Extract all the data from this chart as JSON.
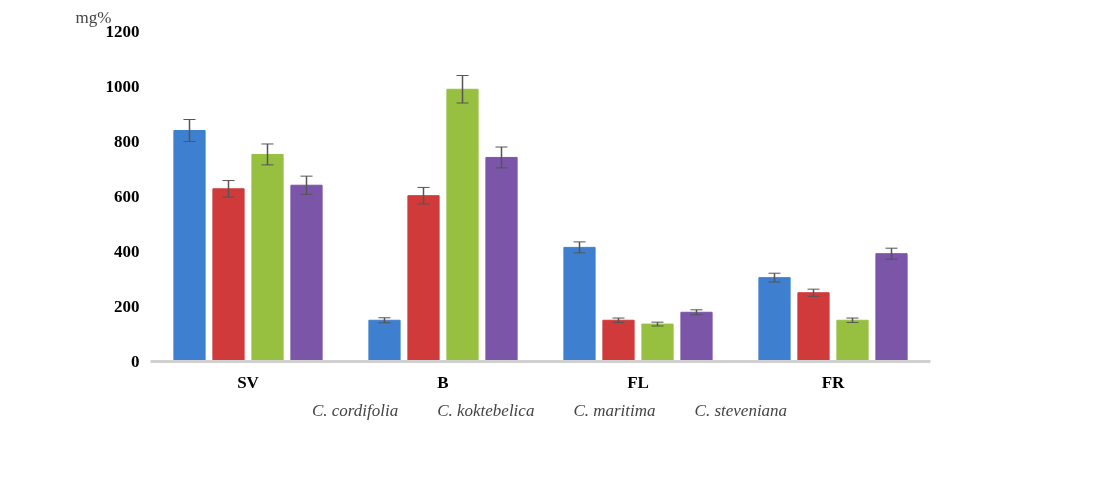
{
  "chart_data": {
    "type": "bar",
    "ylabel": "mg%",
    "categories": [
      "SV",
      "B",
      "FL",
      "FR"
    ],
    "series": [
      {
        "name": "C. cordifolia",
        "color": "#3f7fcf",
        "values": [
          840,
          150,
          415,
          305
        ],
        "errors": [
          40,
          9,
          20,
          16
        ]
      },
      {
        "name": "C. koktebelica",
        "color": "#d03a3a",
        "values": [
          628,
          603,
          150,
          250
        ],
        "errors": [
          30,
          30,
          8,
          13
        ]
      },
      {
        "name": "C. maritima",
        "color": "#98c040",
        "values": [
          753,
          990,
          136,
          150
        ],
        "errors": [
          38,
          50,
          7,
          8
        ]
      },
      {
        "name": "C. steveniana",
        "color": "#7a55a8",
        "values": [
          641,
          742,
          179,
          392
        ],
        "errors": [
          33,
          38,
          9,
          20
        ]
      }
    ],
    "ylim": [
      0,
      1200
    ],
    "yticks": [
      0,
      200,
      400,
      600,
      800,
      1000,
      1200
    ],
    "legend": "bottom"
  }
}
